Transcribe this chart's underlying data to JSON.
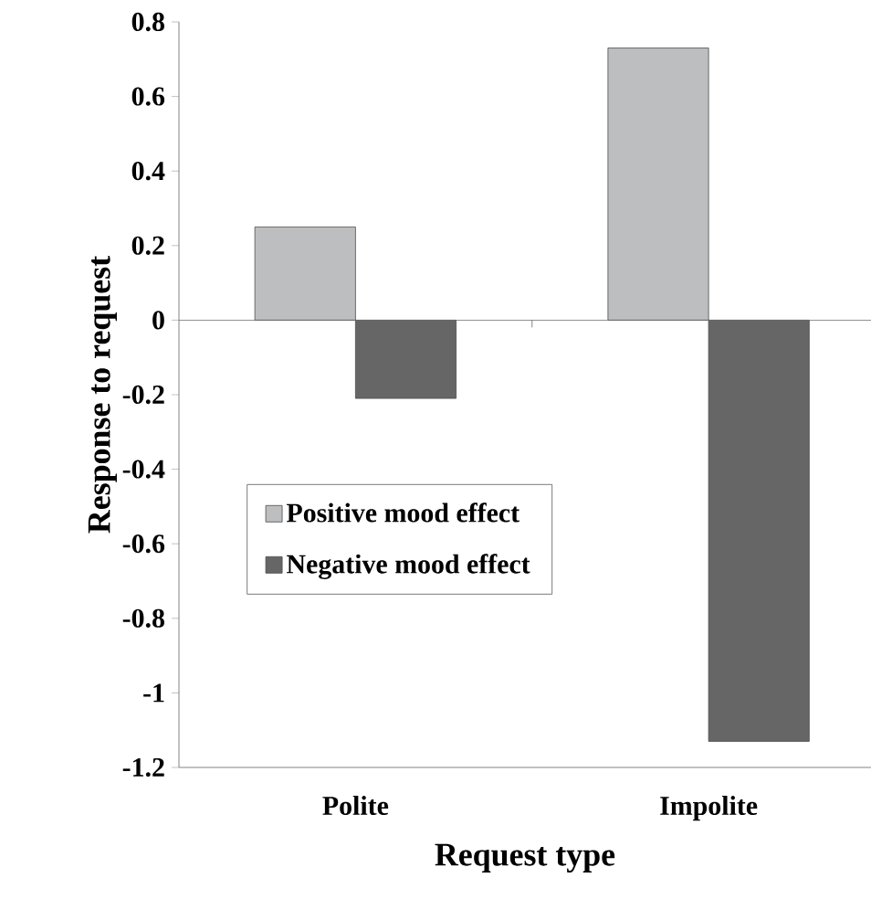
{
  "chart_data": {
    "type": "bar",
    "xlabel": "Request type",
    "ylabel": "Response to request",
    "categories": [
      "Polite",
      "Impolite"
    ],
    "series": [
      {
        "name": "Positive mood effect",
        "color": "#bdbec0",
        "values": [
          0.25,
          0.73
        ]
      },
      {
        "name": "Negative mood effect",
        "color": "#666666",
        "values": [
          -0.21,
          -1.13
        ]
      }
    ],
    "ylim": [
      -1.2,
      0.8
    ],
    "yticks": [
      -1.2,
      -1,
      -0.8,
      -0.6,
      -0.4,
      -0.2,
      0,
      0.2,
      0.4,
      0.6,
      0.8
    ],
    "ref_lines": [
      {
        "axis": "y",
        "value": 0
      }
    ],
    "legend": "left",
    "grid": false
  }
}
